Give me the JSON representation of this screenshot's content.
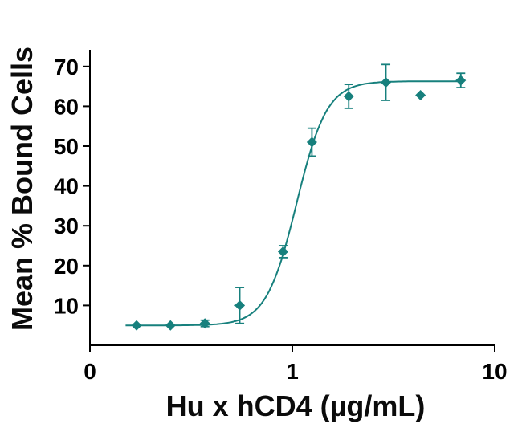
{
  "chart_data": {
    "type": "scatter",
    "title": "",
    "xlabel": "Hu x hCD4 (µg/mL)",
    "ylabel": "Mean % Bound Cells",
    "x_scale": "log",
    "xlim": [
      0.1,
      10
    ],
    "ylim": [
      0,
      75
    ],
    "x_ticks": [
      {
        "value": 0.1,
        "label": "0"
      },
      {
        "value": 1,
        "label": "1"
      },
      {
        "value": 10,
        "label": "10"
      }
    ],
    "y_ticks": [
      10,
      20,
      30,
      40,
      50,
      60,
      70
    ],
    "grid": false,
    "legend": false,
    "axis_color": "#000000",
    "series": [
      {
        "name": "Mean % bound cells",
        "color": "#17807d",
        "marker": "diamond",
        "points": [
          {
            "x": 0.17,
            "y": 5.0,
            "err": 0
          },
          {
            "x": 0.25,
            "y": 5.0,
            "err": 0
          },
          {
            "x": 0.37,
            "y": 5.5,
            "err": 0.8
          },
          {
            "x": 0.55,
            "y": 10.0,
            "err": 4.5
          },
          {
            "x": 0.9,
            "y": 23.5,
            "err": 1.5
          },
          {
            "x": 1.25,
            "y": 51.0,
            "err": 3.5
          },
          {
            "x": 1.9,
            "y": 62.5,
            "err": 3.0
          },
          {
            "x": 2.9,
            "y": 66.0,
            "err": 4.5
          },
          {
            "x": 4.3,
            "y": 62.8,
            "err": 0
          },
          {
            "x": 6.8,
            "y": 66.5,
            "err": 1.8
          }
        ]
      }
    ],
    "fit_curve": {
      "model": "4PL",
      "bottom": 5.0,
      "top": 66.3,
      "ec50": 1.05,
      "hill": 5.8,
      "x_start": 0.15,
      "x_end": 6.8
    }
  }
}
